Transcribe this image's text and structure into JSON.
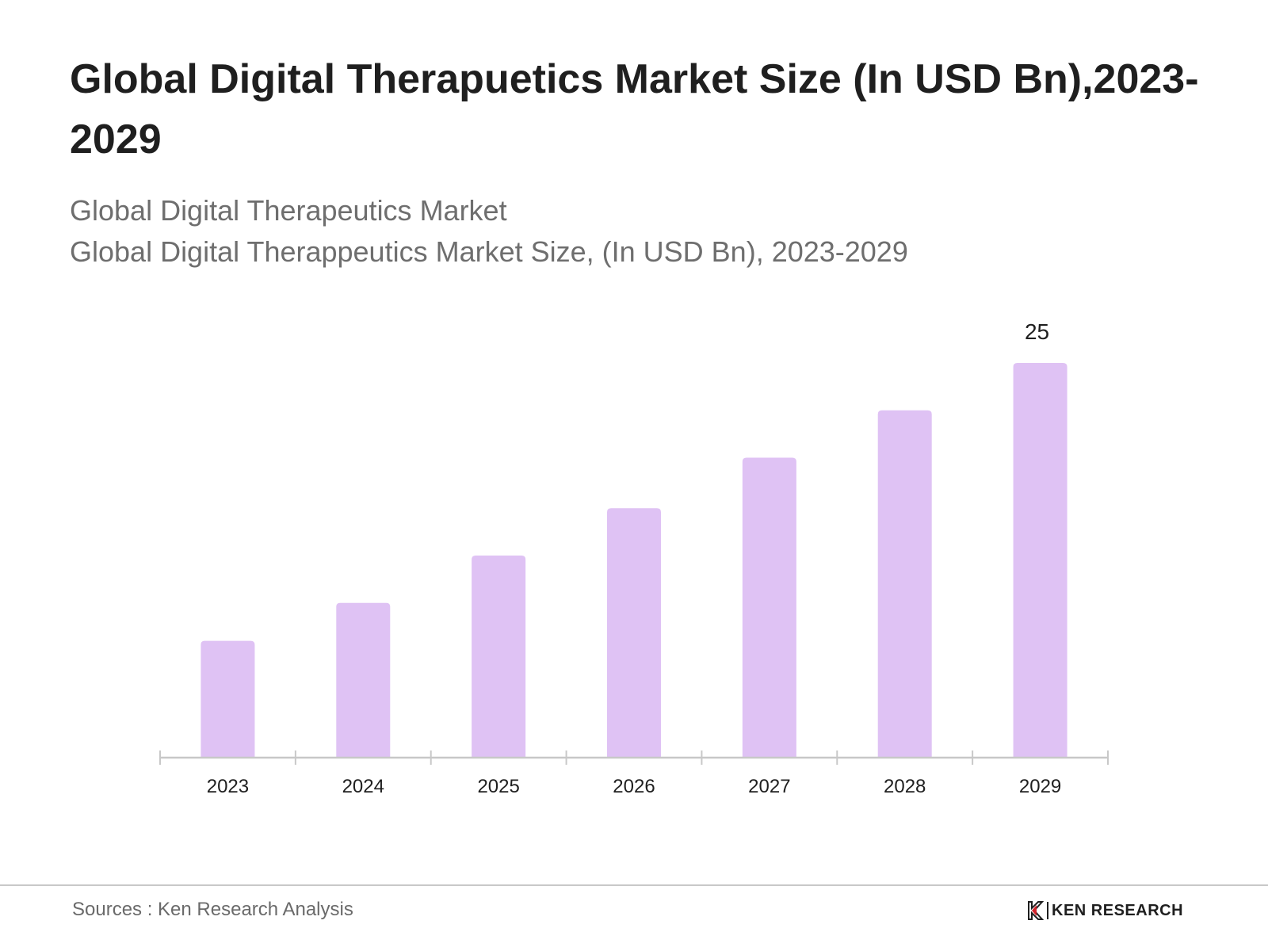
{
  "header": {
    "title": "Global Digital Therapuetics Market Size (In USD Bn),2023-2029",
    "subtitle_line1": "Global Digital Therapeutics Market",
    "subtitle_line2": "Global Digital Therappeutics Market Size, (In USD Bn), 2023-2029"
  },
  "footer": {
    "source": "Sources : Ken Research Analysis",
    "logo_text": "KEN RESEARCH"
  },
  "colors": {
    "bar": "#dfc2f4",
    "axis": "#c8c8c8",
    "text_dark": "#1f1f1f",
    "text_muted": "#6e6e6e"
  },
  "chart_data": {
    "type": "bar",
    "title": "Global Digital Therapuetics Market Size (In USD Bn),2023-2029",
    "xlabel": "",
    "ylabel": "",
    "categories": [
      "2023",
      "2024",
      "2025",
      "2026",
      "2027",
      "2028",
      "2029"
    ],
    "values": [
      7.4,
      9.8,
      12.8,
      15.8,
      19.0,
      22.0,
      25.0
    ],
    "ylim": [
      0,
      25
    ],
    "data_labels": [
      {
        "category": "2029",
        "text": "25"
      }
    ],
    "grid": false,
    "legend": "none"
  }
}
